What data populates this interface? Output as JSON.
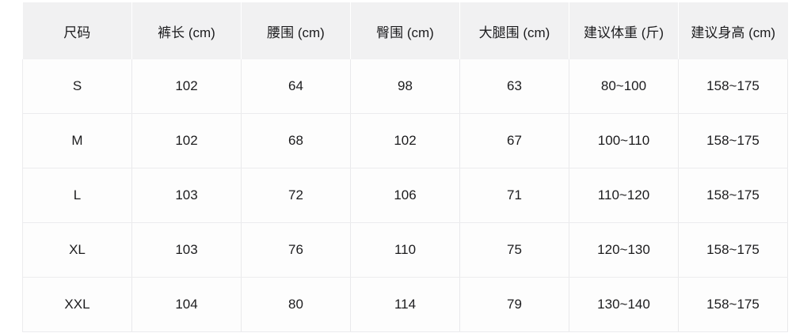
{
  "chart_data": {
    "type": "table",
    "title": "",
    "columns": [
      "尺码",
      "裤长 (cm)",
      "腰围 (cm)",
      "臀围 (cm)",
      "大腿围 (cm)",
      "建议体重 (斤)",
      "建议身高 (cm)"
    ],
    "rows": [
      [
        "S",
        "102",
        "64",
        "98",
        "63",
        "80~100",
        "158~175"
      ],
      [
        "M",
        "102",
        "68",
        "102",
        "67",
        "100~110",
        "158~175"
      ],
      [
        "L",
        "103",
        "72",
        "106",
        "71",
        "110~120",
        "158~175"
      ],
      [
        "XL",
        "103",
        "76",
        "110",
        "75",
        "120~130",
        "158~175"
      ],
      [
        "XXL",
        "104",
        "80",
        "114",
        "79",
        "130~140",
        "158~175"
      ]
    ]
  },
  "colors": {
    "page_bg": "#ffffff",
    "header_bg": "#f1f1f2",
    "body_bg": "#fdfdfd",
    "border": "#e9e9eb",
    "border_row": "#ececee",
    "border_light": "#ffffff",
    "text": "#1c1c1e"
  }
}
